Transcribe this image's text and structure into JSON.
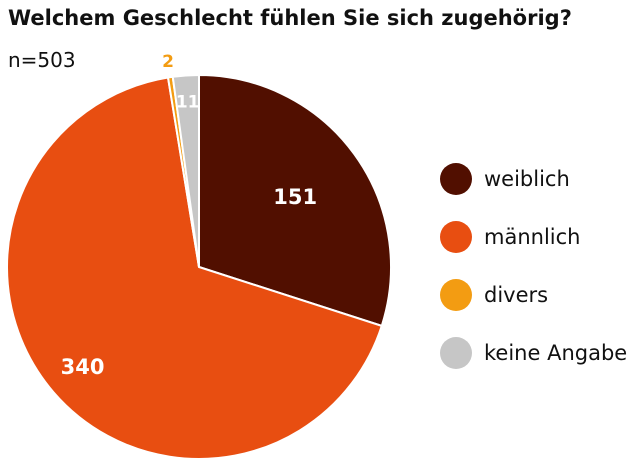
{
  "chart_data": {
    "type": "pie",
    "title": "Welchem Geschlecht fühlen Sie sich zugehörig?",
    "sample_label": "n=503",
    "categories": [
      "weiblich",
      "männlich",
      "divers",
      "keine Angabe"
    ],
    "values": [
      151,
      340,
      2,
      11
    ],
    "value_labels": [
      "151",
      "340",
      "2",
      "11"
    ],
    "colors": [
      "#510f00",
      "#e84e11",
      "#f39c12",
      "#c6c6c6"
    ],
    "label_colors": [
      "#ffffff",
      "#ffffff",
      "#f39c12",
      "#ffffff"
    ],
    "legend_position": "right"
  }
}
